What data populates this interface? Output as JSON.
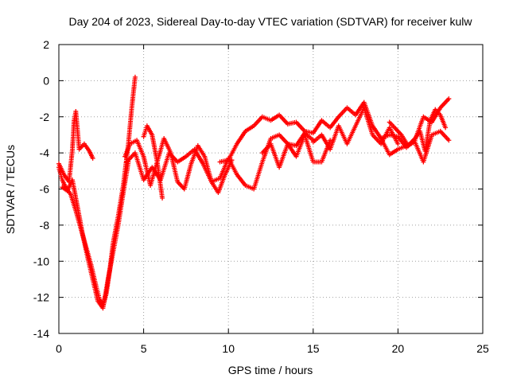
{
  "chart_data": {
    "type": "scatter",
    "title": "Day 204 of 2023, Sidereal Day-to-day VTEC variation (SDTVAR) for receiver kulw",
    "xlabel": "GPS time / hours",
    "ylabel": "SDTVAR / TECUs",
    "xlim": [
      0,
      25
    ],
    "ylim": [
      -14,
      2
    ],
    "x_ticks": [
      0,
      5,
      10,
      15,
      20,
      25
    ],
    "y_ticks": [
      -14,
      -12,
      -10,
      -8,
      -6,
      -4,
      -2,
      0,
      2
    ],
    "grid": true,
    "marker": "+",
    "series": [
      {
        "name": "SDTVAR",
        "color": "#ff0000",
        "segments": [
          {
            "x": [
              0.0,
              0.2,
              0.4,
              0.7,
              1.0,
              1.3,
              1.6,
              1.9,
              2.2,
              2.4,
              2.6,
              2.8,
              3.0,
              3.2,
              3.5,
              3.8,
              4.1,
              4.3,
              4.5
            ],
            "y": [
              -4.8,
              -5.5,
              -5.9,
              -6.3,
              -7.2,
              -8.2,
              -9.2,
              -10.2,
              -11.4,
              -12.1,
              -12.5,
              -11.8,
              -10.5,
              -9.0,
              -7.5,
              -5.8,
              -3.5,
              -1.5,
              0.2
            ]
          },
          {
            "x": [
              0.0,
              0.3,
              0.6,
              0.8,
              0.9,
              1.0,
              1.2,
              1.5,
              1.8,
              2.0
            ],
            "y": [
              -4.6,
              -5.2,
              -5.6,
              -3.8,
              -2.2,
              -1.7,
              -3.8,
              -3.5,
              -3.9,
              -4.3
            ]
          },
          {
            "x": [
              0.2,
              0.5,
              0.8,
              1.1,
              1.4,
              1.7,
              2.0,
              2.3,
              2.6,
              2.9,
              3.2,
              3.5,
              3.8,
              4.1
            ],
            "y": [
              -5.9,
              -6.1,
              -5.5,
              -7.0,
              -8.5,
              -9.8,
              -11.0,
              -12.2,
              -12.6,
              -11.0,
              -9.5,
              -8.0,
              -6.2,
              -4.5
            ]
          },
          {
            "x": [
              3.9,
              4.2,
              4.6,
              5.0,
              5.4,
              5.8,
              6.2,
              6.6,
              7.0,
              7.4,
              7.8,
              8.2,
              8.6,
              9.0,
              9.4,
              9.8,
              10.2
            ],
            "y": [
              -4.2,
              -3.5,
              -3.3,
              -4.2,
              -5.8,
              -4.5,
              -3.2,
              -4.0,
              -5.6,
              -6.0,
              -4.6,
              -3.6,
              -4.2,
              -5.6,
              -6.2,
              -5.2,
              -4.4
            ]
          },
          {
            "x": [
              5.0,
              5.2,
              5.5,
              5.8,
              6.1
            ],
            "y": [
              -3.1,
              -2.5,
              -3.0,
              -4.5,
              -6.5
            ]
          },
          {
            "x": [
              4.0,
              4.5,
              5.0,
              5.5,
              6.0,
              6.5,
              7.0,
              7.5,
              8.0,
              8.5,
              9.0,
              9.5,
              10.0,
              10.5,
              11.0,
              11.5,
              12.0,
              12.5,
              13.0,
              13.5,
              14.0,
              14.5,
              15.0
            ],
            "y": [
              -4.5,
              -4.0,
              -5.5,
              -4.8,
              -5.5,
              -4.0,
              -4.5,
              -4.2,
              -3.8,
              -4.6,
              -5.6,
              -5.4,
              -4.3,
              -5.2,
              -5.8,
              -6.0,
              -4.5,
              -3.2,
              -3.0,
              -3.5,
              -3.6,
              -2.9,
              -3.3
            ]
          },
          {
            "x": [
              9.5,
              10.0,
              10.5,
              11.0,
              11.5,
              12.0,
              12.5,
              13.0,
              13.5,
              14.0,
              14.5,
              15.0,
              15.5,
              16.0,
              16.5,
              17.0,
              17.5,
              18.0,
              18.5,
              19.0,
              19.5,
              20.0,
              20.5,
              21.0,
              21.5,
              22.0,
              22.5,
              23.0
            ],
            "y": [
              -4.5,
              -4.4,
              -3.5,
              -2.8,
              -2.5,
              -2.0,
              -2.2,
              -1.9,
              -2.4,
              -2.3,
              -2.8,
              -2.9,
              -2.2,
              -2.6,
              -2.0,
              -1.5,
              -1.9,
              -1.2,
              -2.5,
              -3.2,
              -3.0,
              -3.1,
              -3.7,
              -3.3,
              -2.0,
              -2.3,
              -1.5,
              -1.0
            ]
          },
          {
            "x": [
              12.0,
              12.5,
              13.0,
              13.5,
              14.0,
              14.5,
              15.0,
              15.5,
              16.0
            ],
            "y": [
              -4.0,
              -3.5,
              -4.8,
              -3.5,
              -4.2,
              -3.0,
              -4.5,
              -4.5,
              -3.3
            ]
          },
          {
            "x": [
              15.0,
              15.5,
              16.0,
              16.5,
              17.0,
              17.5,
              18.0,
              18.5,
              19.0,
              19.5,
              20.0
            ],
            "y": [
              -3.4,
              -3.0,
              -3.8,
              -2.5,
              -3.5,
              -2.5,
              -1.5,
              -3.0,
              -3.5,
              -2.6,
              -3.5
            ]
          },
          {
            "x": [
              19.0,
              19.5,
              20.0,
              20.5,
              21.0,
              21.5,
              22.0,
              22.5,
              23.0
            ],
            "y": [
              -3.2,
              -4.1,
              -3.8,
              -3.6,
              -3.4,
              -4.5,
              -3.0,
              -2.8,
              -3.3
            ]
          },
          {
            "x": [
              19.5,
              19.8,
              20.2,
              20.6,
              21.0,
              21.3,
              21.6,
              21.9,
              22.2,
              22.5,
              22.8
            ],
            "y": [
              -2.3,
              -2.6,
              -3.0,
              -3.6,
              -3.2,
              -2.8,
              -3.9,
              -2.2,
              -1.6,
              -1.9,
              -2.6
            ]
          }
        ]
      }
    ]
  }
}
